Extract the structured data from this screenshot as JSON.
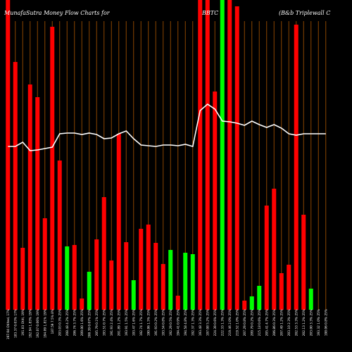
{
  "header": {
    "title_left": "MunafaSutra  Money Flow  Charts for",
    "title_mid": "BBTC",
    "title_right": "(B&b Triplewall C"
  },
  "colors": {
    "background": "#000000",
    "up": "#00ff00",
    "down": "#ff0000",
    "grid": "#8B4500",
    "line": "#ffffff"
  },
  "chart_data": {
    "type": "bar",
    "title": "MunafaSutra  Money Flow  Charts for BBTC (B&b Triplewall C",
    "xlabel": "",
    "ylabel": "",
    "grid": true,
    "categories": [
      "197.04 Otilted, 17%",
      "183.37 0.03% 17%",
      "191.03 Otitl, 19%",
      "192.94 1.83% 19%",
      "192.07 0.06% 19%",
      "194.09 1.81% 19%",
      "187.59 7.5% 8%",
      "203.03 0.3% 25%",
      "208.48 4.2% 25%",
      "206.74 3.7% 25%",
      "209.00 1.6% 25%",
      "200.39 0.07% 25%",
      "205.79 0.1% 25%",
      "193.51 0.7% 25%",
      "191.93 2.4% 25%",
      "201.89 1.2% 25%",
      "193.91 1.5% 25%",
      "193.47 1.6% 25%",
      "192.74 1.7% 25%",
      "190.86 1.5% 25%",
      "191.93 0.2% 25%",
      "193.54 0.8% 25%",
      "192.29 0.5% 25%",
      "194.41 0.9% 25%",
      "194.58 4.8% 25%",
      "192.37 1.3% 25%",
      "193.48 3.3% 25%",
      "197.08 5.2% 25%",
      "224.39 0.6% 25%",
      "222.33 1.3% 25%",
      "219.46 2.0% 25%",
      "219.52 1.0% 25%",
      "207.29 0.8% 25%",
      "209.79 0.2% 25%",
      "215.18 0.6% 25%",
      "205.41 4.7% 25%",
      "206.86 0.3% 25%",
      "207.49 1.2% 25%",
      "203.10 2.3% 25%",
      "202.53 3.3% 25%",
      "202.13 1.2% 25%",
      "203.00 3.3% 25%",
      "193.32 1.0% 25%",
      "198.06 0.8% 25%"
    ],
    "colors": [
      "red",
      "red",
      "red",
      "red",
      "red",
      "red",
      "red",
      "red",
      "green",
      "red",
      "red",
      "green",
      "red",
      "red",
      "red",
      "red",
      "red",
      "green",
      "red",
      "red",
      "red",
      "red",
      "green",
      "red",
      "green",
      "green",
      "red",
      "red",
      "red",
      "green",
      "red",
      "red",
      "red",
      "green",
      "green",
      "red",
      "red",
      "red",
      "red",
      "red",
      "red",
      "green",
      "green",
      "green"
    ],
    "values": [
      440,
      352,
      88,
      320,
      302,
      130,
      402,
      212,
      90,
      92,
      16,
      54,
      100,
      160,
      70,
      250,
      96,
      42,
      115,
      121,
      95,
      65,
      85,
      20,
      81,
      79,
      440,
      440,
      310,
      440,
      440,
      431,
      13,
      19,
      34,
      148,
      172,
      52,
      64,
      405,
      135,
      30,
      0,
      0
    ],
    "line": {
      "name": "",
      "values": [
        232,
        232,
        238,
        226,
        227,
        229,
        231,
        250,
        251,
        251,
        249,
        251,
        249,
        243,
        244,
        250,
        254,
        243,
        234,
        233,
        232,
        234,
        234,
        233,
        235,
        232,
        283,
        292,
        285,
        268,
        267,
        265,
        262,
        268,
        263,
        259,
        263,
        258,
        250,
        248,
        250,
        250,
        250,
        250
      ]
    },
    "ylim": [
      0,
      440
    ]
  }
}
